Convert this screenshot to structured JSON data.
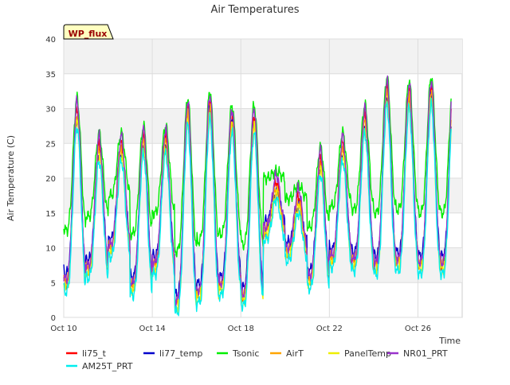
{
  "chart_data": {
    "type": "line",
    "title": "Air Temperatures",
    "ylabel": "Air Temperature (C)",
    "xlabel": "Time",
    "badge": "WP_flux",
    "xlim": [
      "2022-10-10",
      "2022-10-28"
    ],
    "ylim": [
      0,
      40
    ],
    "yticks": [
      0,
      5,
      10,
      15,
      20,
      25,
      30,
      35,
      40
    ],
    "xticks": [
      {
        "date": "2022-10-10",
        "label": "Oct 10"
      },
      {
        "date": "2022-10-14",
        "label": "Oct 14"
      },
      {
        "date": "2022-10-18",
        "label": "Oct 18"
      },
      {
        "date": "2022-10-22",
        "label": "Oct 22"
      },
      {
        "date": "2022-10-26",
        "label": "Oct 26"
      }
    ],
    "grid": true,
    "legend_position": "bottom",
    "x_start": "2022-10-10",
    "x_end": "2022-10-27.5",
    "daily": {
      "dates": [
        "2022-10-10",
        "2022-10-11",
        "2022-10-12",
        "2022-10-13",
        "2022-10-14",
        "2022-10-15",
        "2022-10-16",
        "2022-10-17",
        "2022-10-18",
        "2022-10-19",
        "2022-10-20",
        "2022-10-21",
        "2022-10-22",
        "2022-10-23",
        "2022-10-24",
        "2022-10-25",
        "2022-10-26",
        "2022-10-27"
      ],
      "min": [
        4.5,
        6.5,
        9.5,
        4.0,
        7.0,
        1.5,
        3.0,
        4.0,
        2.5,
        12.0,
        9.0,
        5.0,
        8.0,
        7.5,
        7.0,
        7.5,
        7.0,
        7.0
      ],
      "max": [
        30.0,
        25.0,
        25.0,
        26.0,
        26.0,
        30.0,
        31.0,
        29.0,
        29.0,
        19.5,
        17.5,
        23.0,
        25.0,
        29.0,
        33.0,
        32.5,
        33.0,
        33.0
      ]
    },
    "series": [
      {
        "name": "li75_t",
        "color": "#ff0000",
        "offset_max": 0.0,
        "offset_min": 0.5
      },
      {
        "name": "li77_temp",
        "color": "#0000cc",
        "offset_max": -1.5,
        "offset_min": 1.8
      },
      {
        "name": "Tsonic",
        "color": "#00ee00",
        "offset_max": 1.5,
        "offset_min": 8.0
      },
      {
        "name": "AirT",
        "color": "#ffa500",
        "offset_max": -1.0,
        "offset_min": 0.6
      },
      {
        "name": "PanelTemp",
        "color": "#eeee00",
        "offset_max": -1.8,
        "offset_min": 0.0
      },
      {
        "name": "NR01_PRT",
        "color": "#9932cc",
        "offset_max": 1.0,
        "offset_min": 1.0
      },
      {
        "name": "AM25T_PRT",
        "color": "#00eeee",
        "offset_max": -2.5,
        "offset_min": -0.8
      }
    ]
  }
}
